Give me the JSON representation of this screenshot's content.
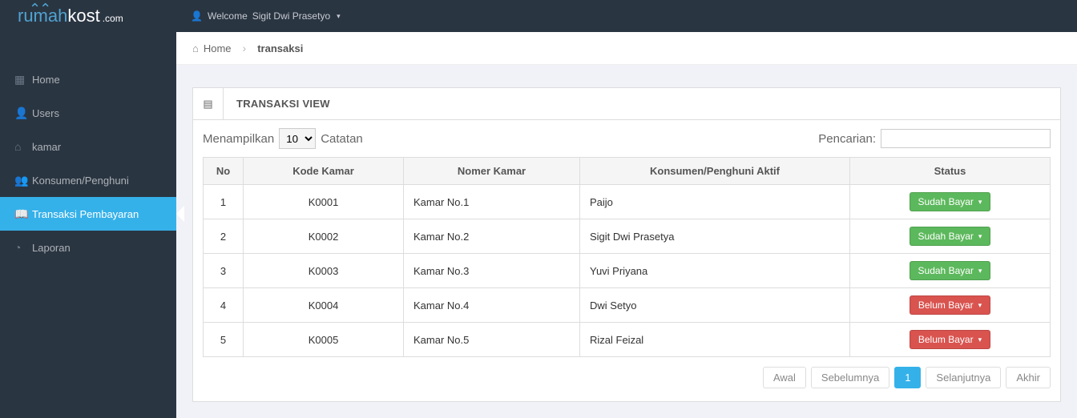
{
  "brand": {
    "part1": "rumah",
    "part2": "kost",
    "part3": ".com"
  },
  "topbar": {
    "welcome_prefix": "Welcome ",
    "user_name": "Sigit Dwi Prasetyo"
  },
  "breadcrumb": {
    "home": "Home",
    "current": "transaksi"
  },
  "sidebar": {
    "items": [
      {
        "label": "Home",
        "icon": "grid-icon",
        "active": false
      },
      {
        "label": "Users",
        "icon": "user-icon",
        "active": false
      },
      {
        "label": "kamar",
        "icon": "home-icon",
        "active": false
      },
      {
        "label": "Konsumen/Penghuni",
        "icon": "users-icon",
        "active": false
      },
      {
        "label": "Transaksi Pembayaran",
        "icon": "book-icon",
        "active": true
      },
      {
        "label": "Laporan",
        "icon": "dash-icon",
        "active": false
      }
    ]
  },
  "panel": {
    "title": "TRANSAKSI VIEW"
  },
  "datatable": {
    "length_prefix": "Menampilkan",
    "length_value": "10",
    "length_suffix": "Catatan",
    "search_label": "Pencarian:",
    "search_value": "",
    "columns": [
      "No",
      "Kode Kamar",
      "Nomer Kamar",
      "Konsumen/Penghuni Aktif",
      "Status"
    ],
    "column_widths": [
      "50px",
      "200px",
      "220px",
      "auto",
      "250px"
    ],
    "header_bg": "#f5f5f5",
    "border_color": "#dddddd",
    "rows": [
      {
        "no": "1",
        "kode": "K0001",
        "nomer": "Kamar No.1",
        "konsumen": "Paijo",
        "status_label": "Sudah Bayar",
        "status_color": "#5cb85c"
      },
      {
        "no": "2",
        "kode": "K0002",
        "nomer": "Kamar No.2",
        "konsumen": "Sigit Dwi Prasetya",
        "status_label": "Sudah Bayar",
        "status_color": "#5cb85c"
      },
      {
        "no": "3",
        "kode": "K0003",
        "nomer": "Kamar No.3",
        "konsumen": "Yuvi Priyana",
        "status_label": "Sudah Bayar",
        "status_color": "#5cb85c"
      },
      {
        "no": "4",
        "kode": "K0004",
        "nomer": "Kamar No.4",
        "konsumen": "Dwi Setyo",
        "status_label": "Belum Bayar",
        "status_color": "#d9534f"
      },
      {
        "no": "5",
        "kode": "K0005",
        "nomer": "Kamar No.5",
        "konsumen": "Rizal Feizal",
        "status_label": "Belum Bayar",
        "status_color": "#d9534f"
      }
    ],
    "paginate": {
      "first": "Awal",
      "prev": "Sebelumnya",
      "page": "1",
      "next": "Selanjutnya",
      "last": "Akhir"
    }
  },
  "colors": {
    "sidebar_bg": "#2a3542",
    "accent": "#35b1ea",
    "content_bg": "#f1f2f7"
  }
}
